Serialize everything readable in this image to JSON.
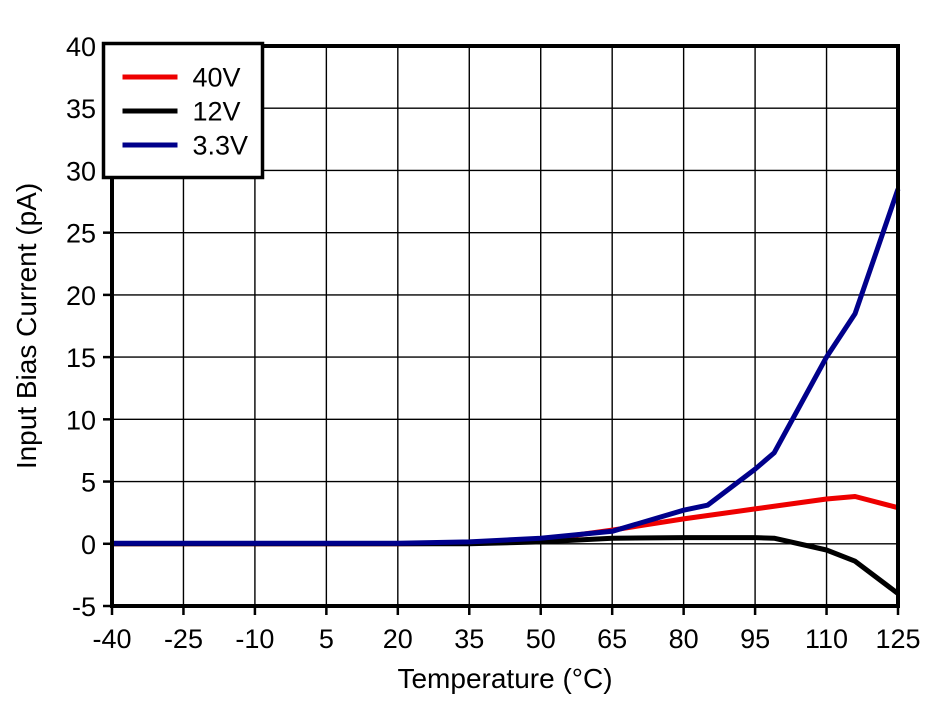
{
  "figure": {
    "background_color": "#ffffff",
    "frame_color": "#000000",
    "grid_color": "#000000"
  },
  "chart_data": {
    "type": "line",
    "title": "",
    "xlabel": "Temperature (°C)",
    "ylabel": "Input Bias Current (pA)",
    "xlim": [
      -40,
      125
    ],
    "ylim": [
      -5,
      40
    ],
    "x_ticks": [
      -40,
      -25,
      -10,
      5,
      20,
      35,
      50,
      65,
      80,
      95,
      110,
      125
    ],
    "y_ticks": [
      -5,
      0,
      5,
      10,
      15,
      20,
      25,
      30,
      35,
      40
    ],
    "grid": true,
    "legend_position": "top-left",
    "series": [
      {
        "name": "40V",
        "color": "#ee0000",
        "x": [
          -40,
          -25,
          -10,
          5,
          20,
          35,
          50,
          65,
          80,
          95,
          110,
          116,
          125
        ],
        "y": [
          0,
          0,
          0,
          0,
          0,
          0.05,
          0.3,
          1.1,
          2.0,
          2.8,
          3.6,
          3.8,
          2.9
        ]
      },
      {
        "name": "12V",
        "color": "#000000",
        "x": [
          -40,
          -25,
          -10,
          5,
          20,
          35,
          50,
          65,
          80,
          95,
          99,
          110,
          116,
          125
        ],
        "y": [
          0,
          0,
          0,
          0,
          0,
          0,
          0.15,
          0.45,
          0.5,
          0.5,
          0.45,
          -0.5,
          -1.4,
          -4.0
        ]
      },
      {
        "name": "3.3V",
        "color": "#00008b",
        "x": [
          -40,
          -25,
          -10,
          5,
          20,
          35,
          50,
          65,
          80,
          85,
          95,
          99,
          110,
          116,
          125
        ],
        "y": [
          0.05,
          0.05,
          0.05,
          0.05,
          0.05,
          0.15,
          0.45,
          1.0,
          2.7,
          3.1,
          6.0,
          7.3,
          15.0,
          18.5,
          28.5
        ]
      }
    ]
  }
}
